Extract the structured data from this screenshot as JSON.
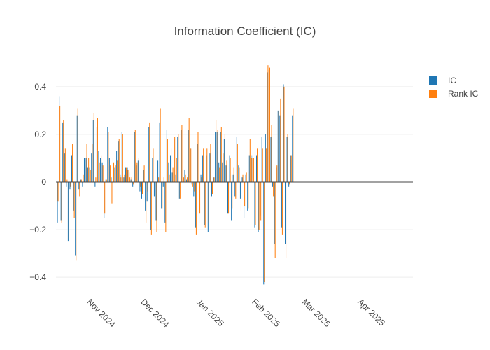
{
  "chart_data": {
    "type": "bar",
    "title": "Information Coefficient (IC)",
    "xlabel": "",
    "ylabel": "",
    "x_range": [
      "2024-10-15",
      "2025-05-02"
    ],
    "ylim": [
      -0.47,
      0.47
    ],
    "yticks": [
      -0.4,
      -0.2,
      0,
      0.2,
      0.4
    ],
    "ytick_labels": [
      "−0.4",
      "−0.2",
      "0",
      "0.2",
      "0.4"
    ],
    "xticks": [
      {
        "date": "2024-11-01",
        "label": "Nov 2024"
      },
      {
        "date": "2024-12-01",
        "label": "Dec 2024"
      },
      {
        "date": "2025-01-01",
        "label": "Jan 2025"
      },
      {
        "date": "2025-02-01",
        "label": "Feb 2025"
      },
      {
        "date": "2025-03-01",
        "label": "Mar 2025"
      },
      {
        "date": "2025-04-01",
        "label": "Apr 2025"
      }
    ],
    "grid": true,
    "legend_position": "top-right",
    "series": [
      {
        "name": "IC",
        "color": "#1f77b4"
      },
      {
        "name": "Rank IC",
        "color": "#ff7f0e"
      }
    ],
    "points": [
      {
        "date": "2024-10-16",
        "ic": -0.17,
        "rank": -0.08
      },
      {
        "date": "2024-10-17",
        "ic": 0.36,
        "rank": 0.32
      },
      {
        "date": "2024-10-18",
        "ic": -0.16,
        "rank": -0.17
      },
      {
        "date": "2024-10-19",
        "ic": 0.25,
        "rank": 0.26
      },
      {
        "date": "2024-10-20",
        "ic": 0.12,
        "rank": 0.14
      },
      {
        "date": "2024-10-21",
        "ic": -0.02,
        "rank": 0.01
      },
      {
        "date": "2024-10-22",
        "ic": -0.25,
        "rank": -0.24
      },
      {
        "date": "2024-10-23",
        "ic": -0.03,
        "rank": -0.02
      },
      {
        "date": "2024-10-24",
        "ic": 0.11,
        "rank": 0.16
      },
      {
        "date": "2024-10-25",
        "ic": -0.12,
        "rank": -0.15
      },
      {
        "date": "2024-10-26",
        "ic": -0.31,
        "rank": -0.33
      },
      {
        "date": "2024-10-27",
        "ic": 0.28,
        "rank": 0.31
      },
      {
        "date": "2024-10-28",
        "ic": -0.03,
        "rank": -0.06
      },
      {
        "date": "2024-10-29",
        "ic": 0.01,
        "rank": 0.01
      },
      {
        "date": "2024-10-30",
        "ic": -0.02,
        "rank": 0.03
      },
      {
        "date": "2024-10-31",
        "ic": 0.1,
        "rank": 0.07
      },
      {
        "date": "2024-11-01",
        "ic": 0.1,
        "rank": 0.16
      },
      {
        "date": "2024-11-02",
        "ic": 0.06,
        "rank": 0.1
      },
      {
        "date": "2024-11-03",
        "ic": 0.06,
        "rank": 0.05
      },
      {
        "date": "2024-11-04",
        "ic": 0.12,
        "rank": 0.16
      },
      {
        "date": "2024-11-05",
        "ic": 0.26,
        "rank": 0.29
      },
      {
        "date": "2024-11-06",
        "ic": -0.02,
        "rank": 0.02
      },
      {
        "date": "2024-11-07",
        "ic": 0.23,
        "rank": 0.27
      },
      {
        "date": "2024-11-08",
        "ic": 0.13,
        "rank": 0.08
      },
      {
        "date": "2024-11-09",
        "ic": 0.1,
        "rank": 0.11
      },
      {
        "date": "2024-11-10",
        "ic": 0.08,
        "rank": 0.07
      },
      {
        "date": "2024-11-11",
        "ic": -0.15,
        "rank": -0.13
      },
      {
        "date": "2024-11-12",
        "ic": 0.01,
        "rank": 0.01
      },
      {
        "date": "2024-11-13",
        "ic": 0.23,
        "rank": 0.21
      },
      {
        "date": "2024-11-14",
        "ic": 0.1,
        "rank": 0.07
      },
      {
        "date": "2024-11-15",
        "ic": 0.02,
        "rank": -0.09
      },
      {
        "date": "2024-11-16",
        "ic": 0.1,
        "rank": 0.08
      },
      {
        "date": "2024-11-17",
        "ic": 0.06,
        "rank": 0.07
      },
      {
        "date": "2024-11-18",
        "ic": 0.13,
        "rank": 0.09
      },
      {
        "date": "2024-11-19",
        "ic": 0.17,
        "rank": 0.18
      },
      {
        "date": "2024-11-20",
        "ic": 0.03,
        "rank": 0.02
      },
      {
        "date": "2024-11-21",
        "ic": 0.21,
        "rank": 0.2
      },
      {
        "date": "2024-11-22",
        "ic": 0.02,
        "rank": 0.03
      },
      {
        "date": "2024-11-23",
        "ic": 0.06,
        "rank": 0.06
      },
      {
        "date": "2024-11-24",
        "ic": 0.06,
        "rank": 0.05
      },
      {
        "date": "2024-11-25",
        "ic": 0.04,
        "rank": 0.02
      },
      {
        "date": "2024-11-26",
        "ic": 0.01,
        "rank": 0.02
      },
      {
        "date": "2024-11-27",
        "ic": -0.02,
        "rank": -0.01
      },
      {
        "date": "2024-11-28",
        "ic": 0.21,
        "rank": 0.22
      },
      {
        "date": "2024-11-29",
        "ic": 0.07,
        "rank": 0.08
      },
      {
        "date": "2024-11-30",
        "ic": 0.09,
        "rank": 0.1
      },
      {
        "date": "2024-12-01",
        "ic": -0.04,
        "rank": -0.02
      },
      {
        "date": "2024-12-02",
        "ic": -0.07,
        "rank": -0.05
      },
      {
        "date": "2024-12-03",
        "ic": 0.05,
        "rank": 0.07
      },
      {
        "date": "2024-12-04",
        "ic": -0.12,
        "rank": -0.17
      },
      {
        "date": "2024-12-05",
        "ic": -0.08,
        "rank": -0.04
      },
      {
        "date": "2024-12-06",
        "ic": 0.23,
        "rank": 0.25
      },
      {
        "date": "2024-12-07",
        "ic": -0.2,
        "rank": -0.22
      },
      {
        "date": "2024-12-08",
        "ic": 0.1,
        "rank": 0.14
      },
      {
        "date": "2024-12-09",
        "ic": -0.06,
        "rank": -0.03
      },
      {
        "date": "2024-12-10",
        "ic": -0.16,
        "rank": -0.21
      },
      {
        "date": "2024-12-11",
        "ic": 0.09,
        "rank": 0.02
      },
      {
        "date": "2024-12-12",
        "ic": 0.25,
        "rank": 0.31
      },
      {
        "date": "2024-12-13",
        "ic": -0.11,
        "rank": -0.11
      },
      {
        "date": "2024-12-14",
        "ic": -0.02,
        "rank": 0.02
      },
      {
        "date": "2024-12-15",
        "ic": -0.17,
        "rank": -0.21
      },
      {
        "date": "2024-12-16",
        "ic": 0.22,
        "rank": 0.18
      },
      {
        "date": "2024-12-17",
        "ic": 0.08,
        "rank": 0.03
      },
      {
        "date": "2024-12-18",
        "ic": 0.11,
        "rank": 0.14
      },
      {
        "date": "2024-12-19",
        "ic": 0.04,
        "rank": 0.06
      },
      {
        "date": "2024-12-20",
        "ic": 0.18,
        "rank": 0.19
      },
      {
        "date": "2024-12-21",
        "ic": 0.03,
        "rank": 0.1
      },
      {
        "date": "2024-12-22",
        "ic": 0.19,
        "rank": 0.2
      },
      {
        "date": "2024-12-23",
        "ic": -0.07,
        "rank": -0.07
      },
      {
        "date": "2024-12-24",
        "ic": 0.22,
        "rank": 0.24
      },
      {
        "date": "2024-12-25",
        "ic": 0.01,
        "rank": 0.02
      },
      {
        "date": "2024-12-26",
        "ic": 0.05,
        "rank": 0.03
      },
      {
        "date": "2024-12-27",
        "ic": 0.01,
        "rank": 0.02
      },
      {
        "date": "2024-12-28",
        "ic": 0.22,
        "rank": 0.27
      },
      {
        "date": "2024-12-29",
        "ic": 0.14,
        "rank": 0.14
      },
      {
        "date": "2024-12-30",
        "ic": -0.01,
        "rank": -0.02
      },
      {
        "date": "2024-12-31",
        "ic": -0.06,
        "rank": -0.04
      },
      {
        "date": "2025-01-01",
        "ic": -0.19,
        "rank": -0.22
      },
      {
        "date": "2025-01-02",
        "ic": 0.16,
        "rank": 0.21
      },
      {
        "date": "2025-01-03",
        "ic": -0.17,
        "rank": -0.13
      },
      {
        "date": "2025-01-04",
        "ic": 0.03,
        "rank": 0.02
      },
      {
        "date": "2025-01-05",
        "ic": 0.11,
        "rank": 0.14
      },
      {
        "date": "2025-01-06",
        "ic": -0.18,
        "rank": -0.19
      },
      {
        "date": "2025-01-07",
        "ic": 0.11,
        "rank": 0.14
      },
      {
        "date": "2025-01-08",
        "ic": -0.21,
        "rank": -0.17
      },
      {
        "date": "2025-01-09",
        "ic": 0.12,
        "rank": 0.16
      },
      {
        "date": "2025-01-10",
        "ic": -0.06,
        "rank": -0.05
      },
      {
        "date": "2025-01-11",
        "ic": 0.02,
        "rank": 0.02
      },
      {
        "date": "2025-01-12",
        "ic": 0.21,
        "rank": 0.26
      },
      {
        "date": "2025-01-13",
        "ic": 0.21,
        "rank": 0.22
      },
      {
        "date": "2025-01-14",
        "ic": 0.08,
        "rank": 0.06
      },
      {
        "date": "2025-01-15",
        "ic": 0.21,
        "rank": 0.23
      },
      {
        "date": "2025-01-16",
        "ic": 0.08,
        "rank": 0.12
      },
      {
        "date": "2025-01-17",
        "ic": 0.18,
        "rank": 0.2
      },
      {
        "date": "2025-01-18",
        "ic": 0.07,
        "rank": 0.09
      },
      {
        "date": "2025-01-19",
        "ic": -0.13,
        "rank": -0.13
      },
      {
        "date": "2025-01-20",
        "ic": 0.11,
        "rank": 0.1
      },
      {
        "date": "2025-01-21",
        "ic": -0.16,
        "rank": -0.11
      },
      {
        "date": "2025-01-22",
        "ic": 0.03,
        "rank": 0.06
      },
      {
        "date": "2025-01-23",
        "ic": -0.06,
        "rank": -0.07
      },
      {
        "date": "2025-01-24",
        "ic": 0.19,
        "rank": 0.16
      },
      {
        "date": "2025-01-25",
        "ic": 0.07,
        "rank": 0.06
      },
      {
        "date": "2025-01-26",
        "ic": -0.07,
        "rank": -0.12
      },
      {
        "date": "2025-01-27",
        "ic": 0.02,
        "rank": 0.03
      },
      {
        "date": "2025-01-28",
        "ic": -0.15,
        "rank": -0.1
      },
      {
        "date": "2025-01-29",
        "ic": 0.03,
        "rank": 0.04
      },
      {
        "date": "2025-01-30",
        "ic": -0.12,
        "rank": -0.11
      },
      {
        "date": "2025-01-31",
        "ic": 0.11,
        "rank": 0.18
      },
      {
        "date": "2025-02-01",
        "ic": 0.11,
        "rank": 0.1
      },
      {
        "date": "2025-02-02",
        "ic": 0.11,
        "rank": 0.1
      },
      {
        "date": "2025-02-03",
        "ic": -0.19,
        "rank": -0.18
      },
      {
        "date": "2025-02-04",
        "ic": 0.11,
        "rank": 0.14
      },
      {
        "date": "2025-02-05",
        "ic": -0.21,
        "rank": -0.2
      },
      {
        "date": "2025-02-06",
        "ic": -0.14,
        "rank": -0.16
      },
      {
        "date": "2025-02-07",
        "ic": 0.19,
        "rank": 0.14
      },
      {
        "date": "2025-02-08",
        "ic": -0.43,
        "rank": -0.42
      },
      {
        "date": "2025-02-09",
        "ic": 0.2,
        "rank": 0.14
      },
      {
        "date": "2025-02-10",
        "ic": 0.46,
        "rank": 0.49
      },
      {
        "date": "2025-02-11",
        "ic": 0.47,
        "rank": 0.48
      },
      {
        "date": "2025-02-12",
        "ic": 0.19,
        "rank": 0.24
      },
      {
        "date": "2025-02-13",
        "ic": -0.02,
        "rank": -0.06
      },
      {
        "date": "2025-02-14",
        "ic": -0.26,
        "rank": -0.32
      },
      {
        "date": "2025-02-15",
        "ic": 0.06,
        "rank": 0.07
      },
      {
        "date": "2025-02-16",
        "ic": 0.3,
        "rank": 0.3
      },
      {
        "date": "2025-02-17",
        "ic": 0.28,
        "rank": 0.35
      },
      {
        "date": "2025-02-18",
        "ic": -0.19,
        "rank": -0.22
      },
      {
        "date": "2025-02-19",
        "ic": 0.41,
        "rank": 0.4
      },
      {
        "date": "2025-02-20",
        "ic": -0.26,
        "rank": -0.32
      },
      {
        "date": "2025-02-21",
        "ic": 0.19,
        "rank": 0.2
      },
      {
        "date": "2025-02-22",
        "ic": -0.02,
        "rank": -0.01
      },
      {
        "date": "2025-02-23",
        "ic": 0.11,
        "rank": 0.11
      },
      {
        "date": "2025-02-24",
        "ic": 0.28,
        "rank": 0.31
      }
    ]
  }
}
